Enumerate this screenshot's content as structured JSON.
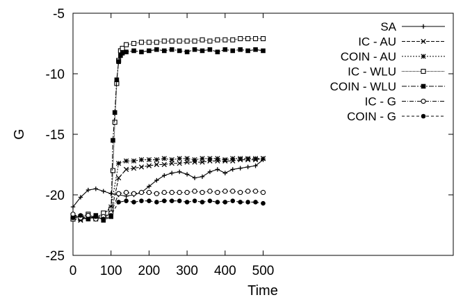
{
  "chart_data": {
    "type": "line",
    "xlabel": "Time",
    "ylabel": "G",
    "xlim": [
      0,
      1000
    ],
    "ylim": [
      -25,
      -5
    ],
    "x_ticks": [
      0,
      100,
      200,
      300,
      400,
      500
    ],
    "y_ticks": [
      -25,
      -20,
      -15,
      -10,
      -5
    ],
    "legend_position": "top-right",
    "grid": false,
    "colors": {
      "line": "#000000",
      "background": "#ffffff"
    },
    "series": [
      {
        "name": "SA",
        "marker": "plus",
        "x": [
          0,
          20,
          40,
          60,
          80,
          100,
          120,
          140,
          160,
          180,
          200,
          220,
          240,
          260,
          280,
          300,
          320,
          340,
          360,
          380,
          400,
          420,
          440,
          460,
          480,
          500
        ],
        "y": [
          -21.0,
          -20.2,
          -19.6,
          -19.5,
          -19.7,
          -19.9,
          -20.0,
          -20.1,
          -20.0,
          -19.8,
          -19.3,
          -18.8,
          -18.4,
          -18.2,
          -18.1,
          -18.3,
          -18.6,
          -18.5,
          -18.1,
          -17.9,
          -18.2,
          -17.9,
          -17.8,
          -17.7,
          -17.6,
          -17.1
        ]
      },
      {
        "name": "IC - AU",
        "marker": "cross",
        "x": [
          0,
          20,
          40,
          60,
          80,
          100,
          120,
          140,
          160,
          180,
          200,
          220,
          240,
          260,
          280,
          300,
          320,
          340,
          360,
          380,
          400,
          420,
          440,
          460,
          480,
          500
        ],
        "y": [
          -22.0,
          -22.1,
          -21.8,
          -22.0,
          -21.9,
          -21.5,
          -18.6,
          -17.9,
          -17.8,
          -17.7,
          -17.6,
          -17.5,
          -17.5,
          -17.4,
          -17.4,
          -17.3,
          -17.3,
          -17.3,
          -17.2,
          -17.2,
          -17.2,
          -17.2,
          -17.1,
          -17.1,
          -17.1,
          -17.0
        ]
      },
      {
        "name": "COIN - AU",
        "marker": "star",
        "x": [
          0,
          20,
          40,
          60,
          80,
          100,
          120,
          140,
          160,
          180,
          200,
          220,
          240,
          260,
          280,
          300,
          320,
          340,
          360,
          380,
          400,
          420,
          440,
          460,
          480,
          500
        ],
        "y": [
          -21.8,
          -22.0,
          -21.7,
          -21.9,
          -21.6,
          -21.0,
          -17.4,
          -17.2,
          -17.2,
          -17.1,
          -17.1,
          -17.1,
          -17.0,
          -17.1,
          -17.0,
          -17.0,
          -17.1,
          -17.0,
          -17.0,
          -17.0,
          -17.1,
          -17.0,
          -17.0,
          -17.0,
          -17.0,
          -17.0
        ]
      },
      {
        "name": "IC - WLU",
        "marker": "square-open",
        "x": [
          0,
          20,
          40,
          60,
          80,
          100,
          105,
          110,
          115,
          120,
          125,
          130,
          140,
          160,
          180,
          200,
          220,
          240,
          260,
          280,
          300,
          320,
          340,
          360,
          380,
          400,
          420,
          440,
          460,
          480,
          500
        ],
        "y": [
          -22.0,
          -21.8,
          -21.6,
          -21.9,
          -21.5,
          -21.2,
          -18.0,
          -14.0,
          -10.8,
          -8.9,
          -8.1,
          -7.9,
          -7.6,
          -7.5,
          -7.4,
          -7.4,
          -7.4,
          -7.3,
          -7.3,
          -7.3,
          -7.3,
          -7.3,
          -7.2,
          -7.3,
          -7.2,
          -7.2,
          -7.2,
          -7.1,
          -7.1,
          -7.1,
          -7.1
        ]
      },
      {
        "name": "COIN - WLU",
        "marker": "square-filled",
        "x": [
          0,
          20,
          40,
          60,
          80,
          100,
          105,
          110,
          115,
          120,
          125,
          130,
          140,
          160,
          180,
          200,
          220,
          240,
          260,
          280,
          300,
          320,
          340,
          360,
          380,
          400,
          420,
          440,
          460,
          480,
          500
        ],
        "y": [
          -21.7,
          -21.9,
          -22.0,
          -21.7,
          -22.1,
          -21.8,
          -15.5,
          -13.2,
          -10.5,
          -9.0,
          -8.5,
          -8.3,
          -8.2,
          -8.1,
          -8.2,
          -8.1,
          -8.0,
          -8.1,
          -8.0,
          -8.1,
          -8.2,
          -8.0,
          -8.1,
          -8.0,
          -8.2,
          -8.0,
          -8.1,
          -8.0,
          -8.1,
          -8.0,
          -8.1
        ]
      },
      {
        "name": "IC - G",
        "marker": "circle-open",
        "x": [
          0,
          20,
          40,
          60,
          80,
          100,
          120,
          140,
          160,
          180,
          200,
          220,
          240,
          260,
          280,
          300,
          320,
          340,
          360,
          380,
          400,
          420,
          440,
          460,
          480,
          500
        ],
        "y": [
          -21.6,
          -21.9,
          -21.7,
          -22.0,
          -21.8,
          -21.5,
          -19.9,
          -19.8,
          -19.9,
          -19.8,
          -19.8,
          -19.9,
          -19.8,
          -19.8,
          -19.8,
          -19.8,
          -19.7,
          -19.8,
          -19.7,
          -19.8,
          -19.7,
          -19.7,
          -19.8,
          -19.7,
          -19.7,
          -19.8
        ]
      },
      {
        "name": "COIN - G",
        "marker": "circle-filled",
        "x": [
          0,
          20,
          40,
          60,
          80,
          100,
          120,
          140,
          160,
          180,
          200,
          220,
          240,
          260,
          280,
          300,
          320,
          340,
          360,
          380,
          400,
          420,
          440,
          460,
          480,
          500
        ],
        "y": [
          -21.9,
          -21.7,
          -22.0,
          -21.8,
          -22.0,
          -21.7,
          -20.6,
          -20.5,
          -20.6,
          -20.5,
          -20.5,
          -20.6,
          -20.5,
          -20.5,
          -20.5,
          -20.6,
          -20.5,
          -20.6,
          -20.5,
          -20.6,
          -20.6,
          -20.5,
          -20.6,
          -20.6,
          -20.6,
          -20.7
        ]
      }
    ]
  }
}
